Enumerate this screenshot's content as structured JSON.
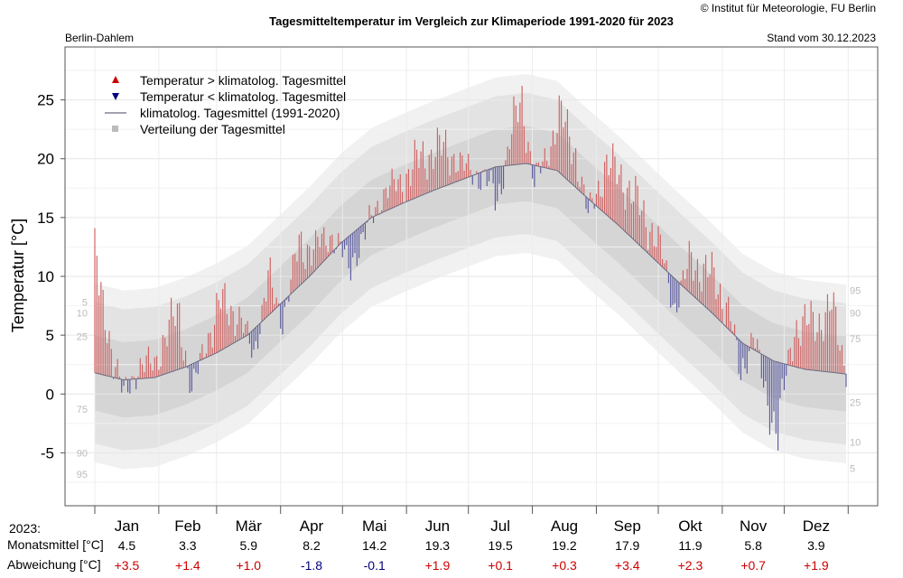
{
  "header": {
    "copyright": "© Institut für Meteorologie, FU Berlin",
    "title": "Tagesmitteltemperatur im Vergleich zur Klimaperiode 1991-2020 für 2023",
    "station": "Berlin-Dahlem",
    "date": "Stand vom 30.12.2023"
  },
  "colors": {
    "above": "#d06060",
    "below": "#5a5aa0",
    "clim_line": "#6a6a80",
    "band_outer": "#f1f1f1",
    "band_mid": "#e3e3e3",
    "band_inner": "#d5d5d5",
    "legend_up": "#cc0000",
    "legend_down": "#000080",
    "positive": "#cc0000",
    "negative": "#000080",
    "percentile_text": "#bbbbbb"
  },
  "legend": [
    {
      "symbol": "triangle-up",
      "label": "Temperatur > klimatolog. Tagesmittel"
    },
    {
      "symbol": "triangle-down",
      "label": "Temperatur < klimatolog. Tagesmittel"
    },
    {
      "symbol": "line",
      "label": "klimatolog. Tagesmittel (1991-2020)"
    },
    {
      "symbol": "square",
      "label": "Verteilung der Tagesmittel"
    }
  ],
  "percentile_labels": {
    "left": [
      {
        "label": "5",
        "value": 7.8
      },
      {
        "label": "10",
        "value": 6.9
      },
      {
        "label": "25",
        "value": 4.9
      },
      {
        "label": "75",
        "value": -1.3
      },
      {
        "label": "90",
        "value": -5.0
      },
      {
        "label": "95",
        "value": -6.8
      }
    ],
    "right": [
      {
        "label": "95",
        "value": 8.8
      },
      {
        "label": "90",
        "value": 6.9
      },
      {
        "label": "75",
        "value": 4.7
      },
      {
        "label": "25",
        "value": -0.7
      },
      {
        "label": "10",
        "value": -4.1
      },
      {
        "label": "5",
        "value": -6.3
      }
    ]
  },
  "table": {
    "year_label": "2023:",
    "row1_label": "Monatsmittel [°C]",
    "row2_label": "Abweichung [°C]",
    "months": [
      "Jan",
      "Feb",
      "Mär",
      "Apr",
      "Mai",
      "Jun",
      "Jul",
      "Aug",
      "Sep",
      "Okt",
      "Nov",
      "Dez"
    ],
    "means": [
      "4.5",
      "3.3",
      "5.9",
      "8.2",
      "14.2",
      "19.3",
      "19.5",
      "19.2",
      "17.9",
      "11.9",
      "5.8",
      "3.9"
    ],
    "deviations": [
      "+3.5",
      "+1.4",
      "+1.0",
      "-1.8",
      "-0.1",
      "+1.9",
      "+0.1",
      "+0.3",
      "+3.4",
      "+2.3",
      "+0.7",
      "+1.9"
    ]
  },
  "chart_data": {
    "type": "bar",
    "title": "Tagesmitteltemperatur im Vergleich zur Klimaperiode 1991-2020 für 2023",
    "ylabel": "Temperatur [°C]",
    "xlabel": "",
    "ylim": [
      -9.5,
      29.5
    ],
    "yticks": [
      -5,
      0,
      5,
      10,
      15,
      20,
      25
    ],
    "grid": true,
    "legend_position": "top-left",
    "days": 365,
    "climatology_anchors": {
      "day": [
        1,
        15,
        30,
        45,
        60,
        75,
        90,
        105,
        120,
        135,
        150,
        165,
        180,
        195,
        210,
        225,
        240,
        255,
        270,
        285,
        300,
        315,
        330,
        345,
        365
      ],
      "mean": [
        1.8,
        1.2,
        1.4,
        2.3,
        3.5,
        5.0,
        7.5,
        10.0,
        12.8,
        15.0,
        16.2,
        17.3,
        18.3,
        19.3,
        19.6,
        19.0,
        16.6,
        14.3,
        11.8,
        9.3,
        6.9,
        4.3,
        2.8,
        2.1,
        1.7
      ],
      "band_offsets": {
        "p25": -3.2,
        "p75": 3.2,
        "p10": -6.0,
        "p90": 6.0,
        "p05": -7.6,
        "p95": 7.6
      }
    },
    "anomaly_anchors": {
      "day": [
        1,
        3,
        8,
        15,
        22,
        30,
        36,
        42,
        48,
        55,
        62,
        70,
        78,
        85,
        92,
        100,
        108,
        116,
        124,
        132,
        140,
        150,
        158,
        166,
        174,
        182,
        190,
        196,
        202,
        208,
        214,
        220,
        226,
        234,
        240,
        248,
        256,
        266,
        274,
        282,
        290,
        300,
        308,
        314,
        320,
        326,
        332,
        340,
        350,
        358,
        365
      ],
      "value": [
        12,
        7,
        3.5,
        -1.5,
        1.0,
        1.2,
        3.5,
        4.8,
        -2.5,
        1.5,
        4.0,
        2.5,
        -2.0,
        3.0,
        -1.5,
        3.5,
        2.0,
        1.5,
        -2.5,
        -1.0,
        1.5,
        2.0,
        3.0,
        3.5,
        2.5,
        0.5,
        -0.5,
        -3.0,
        2.0,
        5.5,
        -1.5,
        1.0,
        5.0,
        3.0,
        -1.5,
        4.0,
        4.5,
        3.0,
        2.0,
        -2.5,
        3.0,
        3.0,
        2.0,
        -3.0,
        1.5,
        -3.5,
        -5.5,
        3.5,
        4.0,
        5.5,
        0.5
      ]
    },
    "notable_values": {
      "jan_1": 14.1,
      "jul_max": 25.3,
      "nov_min": -4.8
    }
  }
}
